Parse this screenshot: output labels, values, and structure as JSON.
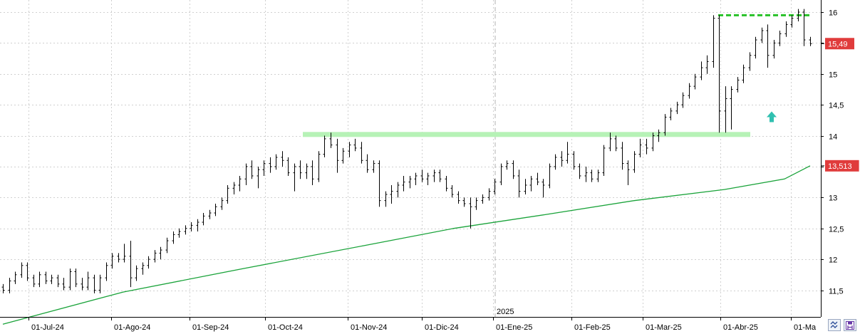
{
  "chart_data": {
    "type": "bar",
    "subtype": "ohlc",
    "title": "",
    "xlabel": "",
    "ylabel": "",
    "ylim": [
      11.08,
      16.15
    ],
    "y_ticks": [
      "16",
      "15,5",
      "15",
      "14,5",
      "14",
      "13,5",
      "13",
      "12,5",
      "12",
      "11,5"
    ],
    "y_tick_values": [
      16,
      15.5,
      15,
      14.5,
      14,
      13.5,
      13,
      12.5,
      12,
      11.5
    ],
    "x_tick_labels": [
      "01-Jul-24",
      "01-Ago-24",
      "01-Sep-24",
      "01-Oct-24",
      "01-Nov-24",
      "01-Dic-24",
      "01-Ene-25",
      "01-Feb-25",
      "01-Mar-25",
      "01-Abr-25",
      "01-Ma"
    ],
    "year_label": "2025",
    "grid": true,
    "last_price_label": "15,49",
    "last_price": 15.49,
    "ma_value_label": "13,513",
    "ma_value": 13.513,
    "ohlc_series": {
      "name": "",
      "color": "#000000",
      "points": [
        [
          11.55,
          11.6,
          11.45,
          11.5
        ],
        [
          11.5,
          11.7,
          11.45,
          11.65
        ],
        [
          11.65,
          11.8,
          11.6,
          11.75
        ],
        [
          11.75,
          11.95,
          11.7,
          11.9
        ],
        [
          11.9,
          11.95,
          11.65,
          11.7
        ],
        [
          11.7,
          11.75,
          11.55,
          11.6
        ],
        [
          11.6,
          11.8,
          11.55,
          11.75
        ],
        [
          11.75,
          11.8,
          11.6,
          11.65
        ],
        [
          11.65,
          11.75,
          11.6,
          11.7
        ],
        [
          11.7,
          11.75,
          11.55,
          11.6
        ],
        [
          11.6,
          11.7,
          11.5,
          11.55
        ],
        [
          11.55,
          11.85,
          11.5,
          11.8
        ],
        [
          11.8,
          11.85,
          11.55,
          11.6
        ],
        [
          11.6,
          11.7,
          11.5,
          11.55
        ],
        [
          11.55,
          11.8,
          11.5,
          11.7
        ],
        [
          11.7,
          11.75,
          11.45,
          11.5
        ],
        [
          11.5,
          11.75,
          11.45,
          11.7
        ],
        [
          11.7,
          11.95,
          11.65,
          11.9
        ],
        [
          11.9,
          12.1,
          11.85,
          12.05
        ],
        [
          12.05,
          12.1,
          11.95,
          12.0
        ],
        [
          12.0,
          12.25,
          11.95,
          12.05
        ],
        [
          12.05,
          12.3,
          11.55,
          11.7
        ],
        [
          11.7,
          11.9,
          11.65,
          11.85
        ],
        [
          11.85,
          11.95,
          11.75,
          11.9
        ],
        [
          11.9,
          12.05,
          11.85,
          12.0
        ],
        [
          12.0,
          12.15,
          11.95,
          12.1
        ],
        [
          12.1,
          12.2,
          12.0,
          12.15
        ],
        [
          12.15,
          12.35,
          12.1,
          12.3
        ],
        [
          12.3,
          12.45,
          12.25,
          12.4
        ],
        [
          12.4,
          12.5,
          12.35,
          12.45
        ],
        [
          12.45,
          12.55,
          12.4,
          12.5
        ],
        [
          12.5,
          12.6,
          12.45,
          12.55
        ],
        [
          12.55,
          12.65,
          12.45,
          12.6
        ],
        [
          12.6,
          12.75,
          12.55,
          12.7
        ],
        [
          12.7,
          12.8,
          12.65,
          12.75
        ],
        [
          12.75,
          12.9,
          12.7,
          12.85
        ],
        [
          12.85,
          13.0,
          12.8,
          12.95
        ],
        [
          12.95,
          13.2,
          12.9,
          13.15
        ],
        [
          13.15,
          13.25,
          13.05,
          13.2
        ],
        [
          13.2,
          13.35,
          13.1,
          13.3
        ],
        [
          13.3,
          13.55,
          13.2,
          13.5
        ],
        [
          13.5,
          13.6,
          13.3,
          13.35
        ],
        [
          13.35,
          13.5,
          13.15,
          13.45
        ],
        [
          13.45,
          13.6,
          13.35,
          13.55
        ],
        [
          13.55,
          13.65,
          13.4,
          13.5
        ],
        [
          13.5,
          13.7,
          13.45,
          13.65
        ],
        [
          13.65,
          13.75,
          13.5,
          13.6
        ],
        [
          13.6,
          13.65,
          13.35,
          13.4
        ],
        [
          13.4,
          13.55,
          13.1,
          13.5
        ],
        [
          13.5,
          13.6,
          13.3,
          13.4
        ],
        [
          13.4,
          13.55,
          13.3,
          13.5
        ],
        [
          13.5,
          13.6,
          13.2,
          13.3
        ],
        [
          13.3,
          13.75,
          13.25,
          13.7
        ],
        [
          13.7,
          14.0,
          13.65,
          13.95
        ],
        [
          13.95,
          14.05,
          13.8,
          13.85
        ],
        [
          13.85,
          13.95,
          13.4,
          13.6
        ],
        [
          13.6,
          13.8,
          13.55,
          13.75
        ],
        [
          13.75,
          13.9,
          13.65,
          13.85
        ],
        [
          13.85,
          13.95,
          13.75,
          13.8
        ],
        [
          13.8,
          13.9,
          13.55,
          13.6
        ],
        [
          13.6,
          13.7,
          13.4,
          13.45
        ],
        [
          13.45,
          13.6,
          13.4,
          13.55
        ],
        [
          13.55,
          13.6,
          12.85,
          12.95
        ],
        [
          12.95,
          13.1,
          12.85,
          13.05
        ],
        [
          13.05,
          13.2,
          12.9,
          13.1
        ],
        [
          13.1,
          13.25,
          13.0,
          13.2
        ],
        [
          13.2,
          13.35,
          13.1,
          13.25
        ],
        [
          13.25,
          13.35,
          13.15,
          13.3
        ],
        [
          13.3,
          13.4,
          13.2,
          13.35
        ],
        [
          13.35,
          13.45,
          13.25,
          13.3
        ],
        [
          13.3,
          13.4,
          13.2,
          13.35
        ],
        [
          13.35,
          13.45,
          13.25,
          13.4
        ],
        [
          13.4,
          13.45,
          13.25,
          13.3
        ],
        [
          13.3,
          13.35,
          13.1,
          13.15
        ],
        [
          13.15,
          13.2,
          13.0,
          13.05
        ],
        [
          13.05,
          13.1,
          12.9,
          12.95
        ],
        [
          12.95,
          13.0,
          12.85,
          12.9
        ],
        [
          12.9,
          13.0,
          12.5,
          12.85
        ],
        [
          12.85,
          13.0,
          12.8,
          12.95
        ],
        [
          12.95,
          13.05,
          12.9,
          13.0
        ],
        [
          13.0,
          13.15,
          12.95,
          13.1
        ],
        [
          13.1,
          13.3,
          13.05,
          13.25
        ],
        [
          13.25,
          13.55,
          13.2,
          13.5
        ],
        [
          13.5,
          13.6,
          13.45,
          13.55
        ],
        [
          13.55,
          13.6,
          13.3,
          13.35
        ],
        [
          13.35,
          13.45,
          13.0,
          13.1
        ],
        [
          13.1,
          13.3,
          13.05,
          13.2
        ],
        [
          13.2,
          13.35,
          13.1,
          13.3
        ],
        [
          13.3,
          13.4,
          13.2,
          13.25
        ],
        [
          13.25,
          13.3,
          13.0,
          13.2
        ],
        [
          13.2,
          13.55,
          13.15,
          13.5
        ],
        [
          13.5,
          13.7,
          13.45,
          13.65
        ],
        [
          13.65,
          13.75,
          13.5,
          13.6
        ],
        [
          13.6,
          13.9,
          13.55,
          13.7
        ],
        [
          13.7,
          13.75,
          13.45,
          13.5
        ],
        [
          13.5,
          13.55,
          13.3,
          13.35
        ],
        [
          13.35,
          13.5,
          13.25,
          13.4
        ],
        [
          13.4,
          13.45,
          13.25,
          13.3
        ],
        [
          13.3,
          13.45,
          13.25,
          13.4
        ],
        [
          13.4,
          13.85,
          13.35,
          13.8
        ],
        [
          13.8,
          14.05,
          13.75,
          13.95
        ],
        [
          13.95,
          14.0,
          13.75,
          13.8
        ],
        [
          13.8,
          13.9,
          13.45,
          13.55
        ],
        [
          13.55,
          13.6,
          13.2,
          13.45
        ],
        [
          13.45,
          13.75,
          13.4,
          13.7
        ],
        [
          13.7,
          13.95,
          13.65,
          13.85
        ],
        [
          13.85,
          13.95,
          13.7,
          13.8
        ],
        [
          13.8,
          14.05,
          13.75,
          14.0
        ],
        [
          14.0,
          14.1,
          13.9,
          14.05
        ],
        [
          14.05,
          14.35,
          14.0,
          14.3
        ],
        [
          14.3,
          14.45,
          14.25,
          14.4
        ],
        [
          14.4,
          14.55,
          14.35,
          14.5
        ],
        [
          14.5,
          14.7,
          14.45,
          14.65
        ],
        [
          14.65,
          14.85,
          14.6,
          14.8
        ],
        [
          14.8,
          15.0,
          14.75,
          14.95
        ],
        [
          14.95,
          15.2,
          14.9,
          15.1
        ],
        [
          15.1,
          15.3,
          15.0,
          15.2
        ],
        [
          15.2,
          15.95,
          15.1,
          15.9
        ],
        [
          15.9,
          15.95,
          14.05,
          14.4
        ],
        [
          14.4,
          14.8,
          14.05,
          14.6
        ],
        [
          14.6,
          14.8,
          14.1,
          14.75
        ],
        [
          14.75,
          14.95,
          14.7,
          14.9
        ],
        [
          14.9,
          15.15,
          14.85,
          15.1
        ],
        [
          15.1,
          15.35,
          15.05,
          15.3
        ],
        [
          15.3,
          15.6,
          15.25,
          15.55
        ],
        [
          15.55,
          15.75,
          15.5,
          15.7
        ],
        [
          15.7,
          15.8,
          15.1,
          15.3
        ],
        [
          15.3,
          15.55,
          15.25,
          15.5
        ],
        [
          15.5,
          15.7,
          15.45,
          15.65
        ],
        [
          15.65,
          15.85,
          15.6,
          15.8
        ],
        [
          15.8,
          15.95,
          15.75,
          15.9
        ],
        [
          15.9,
          16.05,
          15.85,
          16.0
        ],
        [
          16.0,
          16.05,
          15.45,
          15.55
        ],
        [
          15.55,
          15.6,
          15.45,
          15.49
        ]
      ]
    },
    "moving_average": {
      "name": "",
      "color": "#1aa33a",
      "points": [
        [
          0,
          10.95
        ],
        [
          80,
          11.47
        ],
        [
          160,
          11.85
        ],
        [
          240,
          12.22
        ],
        [
          300,
          12.5
        ],
        [
          360,
          12.72
        ],
        [
          420,
          12.95
        ],
        [
          480,
          13.13
        ],
        [
          520,
          13.3
        ],
        [
          537,
          13.513
        ]
      ]
    },
    "annotations": {
      "support_line": {
        "value": 14.02,
        "color": "#b6f2b6"
      },
      "resistance_line": {
        "value": 15.95,
        "color": "#27c127"
      },
      "arrow": {
        "value": 14.3,
        "color": "#30c0b0"
      }
    },
    "colors": {
      "price_tag_last": "#e03c3c",
      "price_tag_ma": "#e03c3c",
      "grid": "#d0d0d0",
      "axis": "#000000"
    }
  },
  "icons": {
    "corner_left": "scale-toggle-icon",
    "corner_right": "save-icon"
  }
}
